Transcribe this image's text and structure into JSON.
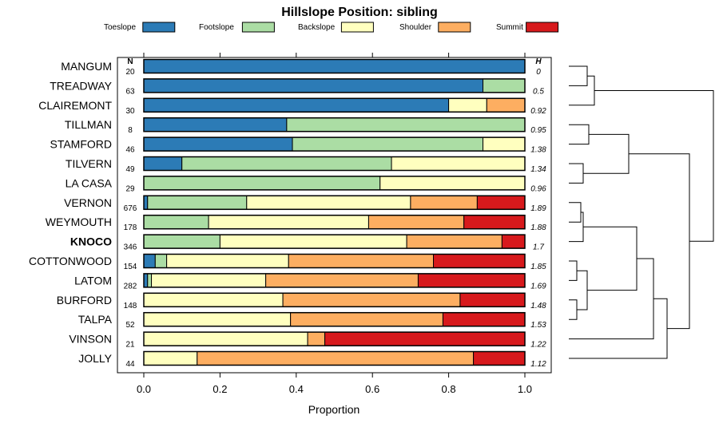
{
  "chart_data": {
    "type": "bar",
    "stacked": true,
    "orientation": "horizontal",
    "title": "Hillslope Position: sibling",
    "xlabel": "Proportion",
    "ylabel": "",
    "xlim": [
      0,
      1
    ],
    "x_ticks": [
      "0.0",
      "0.2",
      "0.4",
      "0.6",
      "0.8",
      "1.0"
    ],
    "n_header": "N",
    "h_header": "H",
    "highlight": "KNOCO",
    "legend_position": "top",
    "series": [
      {
        "name": "Toeslope",
        "color": "#2c7bb6"
      },
      {
        "name": "Footslope",
        "color": "#abdda4"
      },
      {
        "name": "Backslope",
        "color": "#ffffbf"
      },
      {
        "name": "Shoulder",
        "color": "#fdae61"
      },
      {
        "name": "Summit",
        "color": "#d7191c"
      }
    ],
    "categories": [
      "MANGUM",
      "TREADWAY",
      "CLAIREMONT",
      "TILLMAN",
      "STAMFORD",
      "TILVERN",
      "LA CASA",
      "VERNON",
      "WEYMOUTH",
      "KNOCO",
      "COTTONWOOD",
      "LATOM",
      "BURFORD",
      "TALPA",
      "VINSON",
      "JOLLY"
    ],
    "rows": [
      {
        "name": "MANGUM",
        "n": "20",
        "h": "0",
        "values": [
          1.0,
          0.0,
          0.0,
          0.0,
          0.0
        ]
      },
      {
        "name": "TREADWAY",
        "n": "63",
        "h": "0.5",
        "values": [
          0.89,
          0.11,
          0.0,
          0.0,
          0.0
        ]
      },
      {
        "name": "CLAIREMONT",
        "n": "30",
        "h": "0.92",
        "values": [
          0.8,
          0.0,
          0.1,
          0.1,
          0.0
        ]
      },
      {
        "name": "TILLMAN",
        "n": "8",
        "h": "0.95",
        "values": [
          0.375,
          0.625,
          0.0,
          0.0,
          0.0
        ]
      },
      {
        "name": "STAMFORD",
        "n": "46",
        "h": "1.38",
        "values": [
          0.39,
          0.5,
          0.11,
          0.0,
          0.0
        ]
      },
      {
        "name": "TILVERN",
        "n": "49",
        "h": "1.34",
        "values": [
          0.1,
          0.55,
          0.35,
          0.0,
          0.0
        ]
      },
      {
        "name": "LA CASA",
        "n": "29",
        "h": "0.96",
        "values": [
          0.0,
          0.62,
          0.38,
          0.0,
          0.0
        ]
      },
      {
        "name": "VERNON",
        "n": "676",
        "h": "1.89",
        "values": [
          0.01,
          0.26,
          0.43,
          0.175,
          0.125
        ]
      },
      {
        "name": "WEYMOUTH",
        "n": "178",
        "h": "1.88",
        "values": [
          0.0,
          0.17,
          0.42,
          0.25,
          0.16
        ]
      },
      {
        "name": "KNOCO",
        "n": "346",
        "h": "1.7",
        "values": [
          0.0,
          0.2,
          0.49,
          0.25,
          0.06
        ]
      },
      {
        "name": "COTTONWOOD",
        "n": "154",
        "h": "1.85",
        "values": [
          0.03,
          0.03,
          0.32,
          0.38,
          0.24
        ]
      },
      {
        "name": "LATOM",
        "n": "282",
        "h": "1.69",
        "values": [
          0.01,
          0.01,
          0.3,
          0.4,
          0.28
        ]
      },
      {
        "name": "BURFORD",
        "n": "148",
        "h": "1.48",
        "values": [
          0.0,
          0.0,
          0.365,
          0.465,
          0.17
        ]
      },
      {
        "name": "TALPA",
        "n": "52",
        "h": "1.53",
        "values": [
          0.0,
          0.0,
          0.385,
          0.4,
          0.215
        ]
      },
      {
        "name": "VINSON",
        "n": "21",
        "h": "1.22",
        "values": [
          0.0,
          0.0,
          0.43,
          0.045,
          0.525
        ]
      },
      {
        "name": "JOLLY",
        "n": "44",
        "h": "1.12",
        "values": [
          0.0,
          0.0,
          0.14,
          0.725,
          0.135
        ]
      }
    ]
  }
}
